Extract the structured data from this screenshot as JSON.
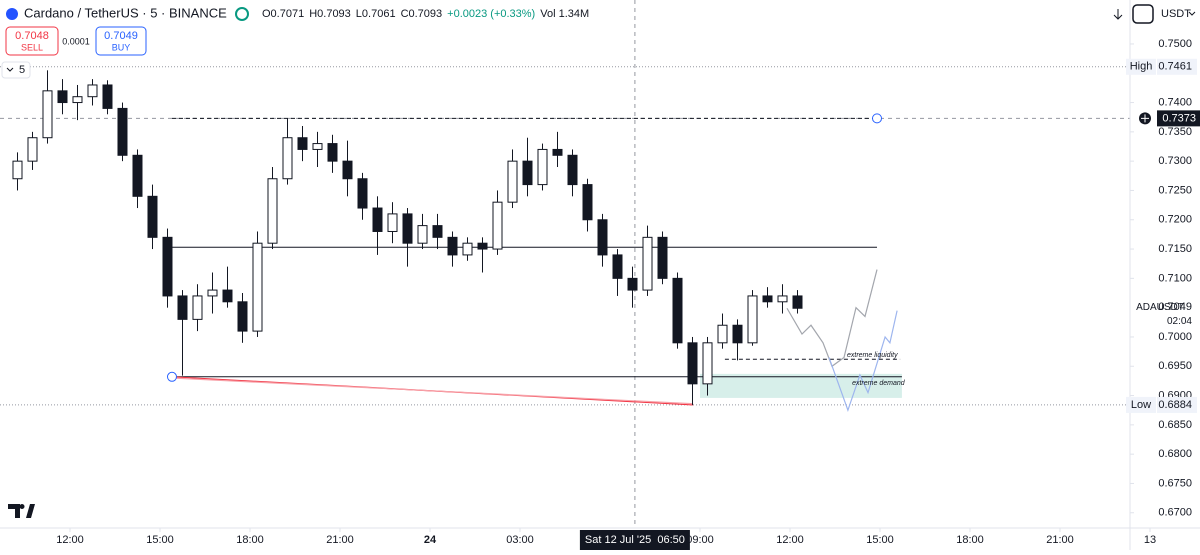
{
  "header": {
    "symbol": "Cardano / TetherUS · 5 · BINANCE",
    "ohlc": [
      "O0.7071",
      "H0.7093",
      "L0.7061",
      "C0.7093",
      "+0.0023 (+0.33%)",
      "Vol 1.34M"
    ],
    "sell_price": "0.7048",
    "sell": "SELL",
    "spread": "0.0001",
    "buy_price": "0.7049",
    "buy": "BUY",
    "indicator_count": "5",
    "currency": "USDT"
  },
  "chart_data": {
    "type": "candlestick",
    "x": [
      10,
      10.5,
      11,
      11.5,
      12,
      12.5,
      13,
      13.5,
      14,
      14.5,
      15,
      15.5,
      16,
      16.5,
      17,
      17.5,
      18,
      18.5,
      19,
      19.5,
      20,
      20.5,
      21,
      21.5,
      22,
      22.5,
      23,
      23.5,
      24,
      24.5,
      25,
      25.5,
      26,
      26.5,
      27,
      27.5,
      28,
      28.5,
      29,
      29.5,
      30,
      30.5,
      31,
      31.5,
      32,
      32.5,
      33,
      33.5,
      34,
      34.5,
      35,
      35.5,
      36
    ],
    "open": [
      0.727,
      0.73,
      0.734,
      0.742,
      0.74,
      0.741,
      0.743,
      0.739,
      0.731,
      0.724,
      0.717,
      0.707,
      0.703,
      0.707,
      0.708,
      0.706,
      0.701,
      0.716,
      0.727,
      0.734,
      0.732,
      0.733,
      0.73,
      0.727,
      0.722,
      0.718,
      0.721,
      0.716,
      0.719,
      0.717,
      0.714,
      0.716,
      0.715,
      0.723,
      0.73,
      0.726,
      0.732,
      0.731,
      0.726,
      0.72,
      0.714,
      0.71,
      0.708,
      0.717,
      0.71,
      0.699,
      0.692,
      0.699,
      0.702,
      0.699,
      0.707,
      0.706,
      0.707
    ],
    "high": [
      0.7315,
      0.735,
      0.7455,
      0.744,
      0.743,
      0.744,
      0.7438,
      0.74,
      0.732,
      0.726,
      0.7185,
      0.708,
      0.709,
      0.711,
      0.712,
      0.7075,
      0.718,
      0.729,
      0.7373,
      0.736,
      0.735,
      0.7345,
      0.7335,
      0.728,
      0.724,
      0.723,
      0.722,
      0.721,
      0.721,
      0.718,
      0.717,
      0.717,
      0.725,
      0.732,
      0.734,
      0.733,
      0.735,
      0.732,
      0.727,
      0.721,
      0.715,
      0.712,
      0.719,
      0.718,
      0.711,
      0.7,
      0.7,
      0.704,
      0.703,
      0.708,
      0.7085,
      0.709,
      0.708
    ],
    "low": [
      0.725,
      0.7285,
      0.733,
      0.738,
      0.737,
      0.7395,
      0.738,
      0.73,
      0.722,
      0.715,
      0.705,
      0.6934,
      0.701,
      0.704,
      0.705,
      0.699,
      0.7,
      0.715,
      0.726,
      0.73,
      0.729,
      0.728,
      0.724,
      0.72,
      0.714,
      0.716,
      0.712,
      0.715,
      0.715,
      0.712,
      0.713,
      0.711,
      0.714,
      0.722,
      0.724,
      0.725,
      0.729,
      0.724,
      0.718,
      0.712,
      0.707,
      0.705,
      0.707,
      0.709,
      0.698,
      0.6884,
      0.69,
      0.698,
      0.696,
      0.6985,
      0.705,
      0.704,
      0.704
    ],
    "close": [
      0.73,
      0.734,
      0.742,
      0.74,
      0.741,
      0.743,
      0.739,
      0.731,
      0.724,
      0.717,
      0.707,
      0.703,
      0.707,
      0.708,
      0.706,
      0.701,
      0.716,
      0.727,
      0.734,
      0.732,
      0.733,
      0.73,
      0.727,
      0.722,
      0.718,
      0.721,
      0.716,
      0.719,
      0.717,
      0.714,
      0.716,
      0.715,
      0.723,
      0.73,
      0.726,
      0.732,
      0.731,
      0.726,
      0.72,
      0.714,
      0.71,
      0.708,
      0.717,
      0.71,
      0.699,
      0.692,
      0.699,
      0.702,
      0.699,
      0.707,
      0.706,
      0.707,
      0.7049
    ],
    "up_color": "#ffffff",
    "down_color": "#131722",
    "xlim": [
      9.667,
      47.333
    ],
    "xticks": [
      {
        "value": 12,
        "label": "12:00"
      },
      {
        "value": 15,
        "label": "15:00"
      },
      {
        "value": 18,
        "label": "18:00"
      },
      {
        "value": 21,
        "label": "21:00"
      },
      24,
      {
        "value": 27,
        "label": "03:00"
      },
      {
        "value": 33,
        "label": "09:00"
      },
      {
        "value": 36,
        "label": "12:00"
      },
      {
        "value": 39,
        "label": "15:00"
      },
      {
        "value": 42,
        "label": "18:00"
      },
      {
        "value": 45,
        "label": "21:00"
      },
      {
        "value": 48,
        "label": "13"
      }
    ],
    "ylim": [
      0.6674,
      0.7575
    ],
    "yticks": [
      {
        "value": 0.67,
        "label": "0.6700"
      },
      {
        "value": 0.675,
        "label": "0.6750"
      },
      {
        "value": 0.68,
        "label": "0.6800"
      },
      {
        "value": 0.685,
        "label": "0.6850"
      },
      {
        "value": 0.69,
        "label": "0.6900"
      },
      {
        "value": 0.695,
        "label": "0.6950"
      },
      {
        "value": 0.7,
        "label": "0.7000"
      },
      {
        "value": 0.71,
        "label": "0.7100"
      },
      {
        "value": 0.715,
        "label": "0.7150"
      },
      {
        "value": 0.72,
        "label": "0.7200"
      },
      {
        "value": 0.725,
        "label": "0.7250"
      },
      {
        "value": 0.73,
        "label": "0.7300"
      },
      {
        "value": 0.735,
        "label": "0.7350"
      },
      {
        "value": 0.74,
        "label": "0.7400"
      },
      {
        "value": 0.75,
        "label": "0.7500"
      }
    ],
    "grid": false,
    "price_labels": [
      {
        "name": "High",
        "value": 0.7461
      },
      {
        "name": "Low",
        "value": 0.6884
      }
    ],
    "last_price": {
      "symbol": "ADAUSDT",
      "value": 0.7049,
      "countdown": "02:04"
    },
    "crosshair": {
      "price": 0.7373,
      "x": 30.83,
      "time": "Sat 12 Jul '25  06:50"
    },
    "levels": [
      {
        "price": 0.7373,
        "x": [
          15.4,
          38.9
        ],
        "style": "dashed",
        "color": "#131722"
      },
      {
        "price": 0.7153,
        "x": [
          15.4,
          38.9
        ],
        "style": "solid",
        "color": "#131722"
      },
      {
        "price": 0.6932,
        "x": [
          15.4,
          39.73
        ],
        "style": "solid",
        "color": "#131722"
      },
      {
        "price": 0.6962,
        "x": [
          33.83,
          39.67
        ],
        "style": "dashed",
        "color": "#131722"
      }
    ],
    "zone": {
      "top": 0.6937,
      "bottom": 0.6896,
      "x": [
        33.0,
        39.73
      ],
      "color": "#d7efea"
    },
    "paths": [
      {
        "color": "#f23645",
        "points": [
          [
            15.4,
            0.6932
          ],
          [
            32.77,
            0.6884
          ]
        ]
      },
      {
        "color": "#f7a1a8",
        "points": [
          [
            15.4,
            0.693
          ],
          [
            32.77,
            0.6886
          ]
        ]
      },
      {
        "color": "#a3a6ad",
        "points": [
          [
            35.9,
            0.7049
          ],
          [
            36.4,
            0.7005
          ],
          [
            36.7,
            0.702
          ],
          [
            37.1,
            0.699
          ],
          [
            37.4,
            0.695
          ],
          [
            37.8,
            0.6965
          ],
          [
            38.2,
            0.705
          ],
          [
            38.5,
            0.7035
          ],
          [
            38.9,
            0.7115
          ]
        ]
      },
      {
        "color": "#9db5ee",
        "points": [
          [
            37.3,
            0.6965
          ],
          [
            37.93,
            0.6875
          ],
          [
            38.33,
            0.6935
          ],
          [
            38.6,
            0.6905
          ],
          [
            39.17,
            0.7
          ],
          [
            39.33,
            0.699
          ],
          [
            39.57,
            0.7045
          ]
        ]
      }
    ],
    "annotations": [
      {
        "text": "extreme liquidity",
        "x": 37.9,
        "price": 0.6969
      },
      {
        "text": "extreme demand",
        "x": 38.07,
        "price": 0.6921
      }
    ]
  }
}
